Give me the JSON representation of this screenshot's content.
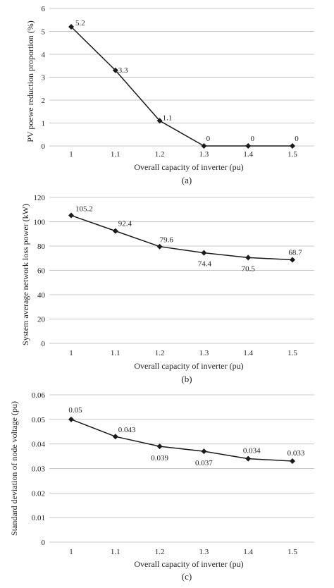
{
  "chart_data": [
    {
      "type": "line",
      "caption": "(a)",
      "x": [
        "1",
        "1.1",
        "1.2",
        "1.3",
        "1.4",
        "1.5"
      ],
      "series": [
        {
          "values": [
            5.2,
            3.3,
            1.1,
            0,
            0,
            0
          ]
        }
      ],
      "data_labels": [
        "5.2",
        "3.3",
        "1.1",
        "0",
        "0",
        "0"
      ],
      "xlabel": "Overall capacity of inverter (pu)",
      "ylabel": "PV poewe reduction proportion (%)",
      "ylim": [
        0,
        6
      ],
      "yticks": [
        "0",
        "1",
        "2",
        "3",
        "4",
        "5",
        "6"
      ],
      "grid": true,
      "marker": "diamond",
      "color": "#1a1a1a"
    },
    {
      "type": "line",
      "caption": "(b)",
      "x": [
        "1",
        "1.1",
        "1.2",
        "1.3",
        "1.4",
        "1.5"
      ],
      "series": [
        {
          "values": [
            105.2,
            92.4,
            79.6,
            74.4,
            70.5,
            68.7
          ]
        }
      ],
      "data_labels": [
        "105.2",
        "92.4",
        "79.6",
        "74.4",
        "70.5",
        "68.7"
      ],
      "xlabel": "Overall capacity of inverter (pu)",
      "ylabel": "System average network loss power (kW)",
      "ylim": [
        0,
        120
      ],
      "yticks": [
        "0",
        "20",
        "40",
        "60",
        "80",
        "100",
        "120"
      ],
      "grid": true,
      "marker": "diamond",
      "color": "#1a1a1a"
    },
    {
      "type": "line",
      "caption": "(c)",
      "x": [
        "1",
        "1.1",
        "1.2",
        "1.3",
        "1.4",
        "1.5"
      ],
      "series": [
        {
          "values": [
            0.05,
            0.043,
            0.039,
            0.037,
            0.034,
            0.033
          ]
        }
      ],
      "data_labels": [
        "0.05",
        "0.043",
        "0.039",
        "0.037",
        "0.034",
        "0.033"
      ],
      "xlabel": "Overall capacity of inverter (pu)",
      "ylabel": "Standard deviation of node voltage (pu)",
      "ylim": [
        0,
        0.06
      ],
      "yticks": [
        "0",
        "0.01",
        "0.02",
        "0.03",
        "0.04",
        "0.05",
        "0.06"
      ],
      "grid": true,
      "marker": "diamond",
      "color": "#1a1a1a"
    }
  ]
}
